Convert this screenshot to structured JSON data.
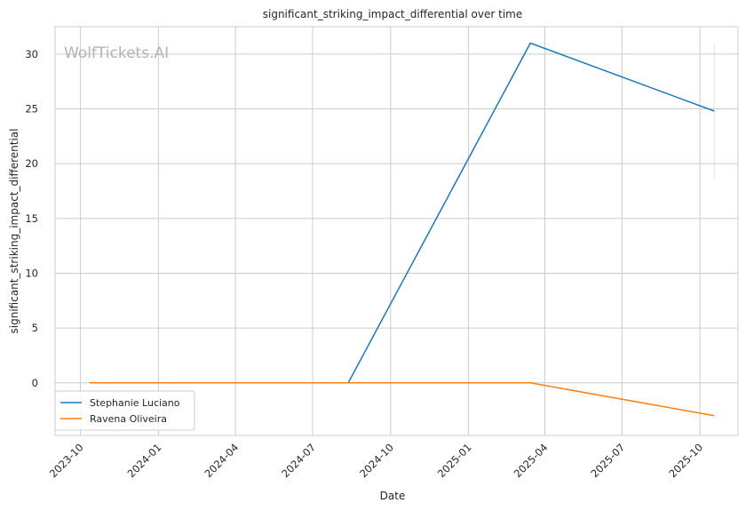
{
  "chart_data": {
    "type": "line",
    "title": "significant_striking_impact_differential over time",
    "xlabel": "Date",
    "ylabel": "significant_striking_impact_differential",
    "watermark": "WolfTickets.AI",
    "x_ticks": [
      "2023-10",
      "2024-01",
      "2024-04",
      "2024-07",
      "2024-10",
      "2025-01",
      "2025-04",
      "2025-07",
      "2025-10"
    ],
    "y_ticks": [
      0,
      5,
      10,
      15,
      20,
      25,
      30
    ],
    "xlim": [
      "2023-09-01",
      "2025-11-15"
    ],
    "ylim": [
      -4.8,
      32.5
    ],
    "grid": true,
    "legend_position": "lower-left",
    "series": [
      {
        "name": "Stephanie Luciano",
        "color": "#1f77b4",
        "points": [
          {
            "date": "2023-10-12",
            "value": 0
          },
          {
            "date": "2024-08-12",
            "value": 0
          },
          {
            "date": "2025-03-15",
            "value": 31
          },
          {
            "date": "2025-10-18",
            "value": 24.8
          }
        ],
        "error_bar": {
          "date": "2025-10-18",
          "low": 18.5,
          "high": 31
        }
      },
      {
        "name": "Ravena Oliveira",
        "color": "#ff7f0e",
        "points": [
          {
            "date": "2023-10-12",
            "value": 0
          },
          {
            "date": "2025-03-15",
            "value": 0
          },
          {
            "date": "2025-10-18",
            "value": -3
          }
        ]
      }
    ]
  }
}
